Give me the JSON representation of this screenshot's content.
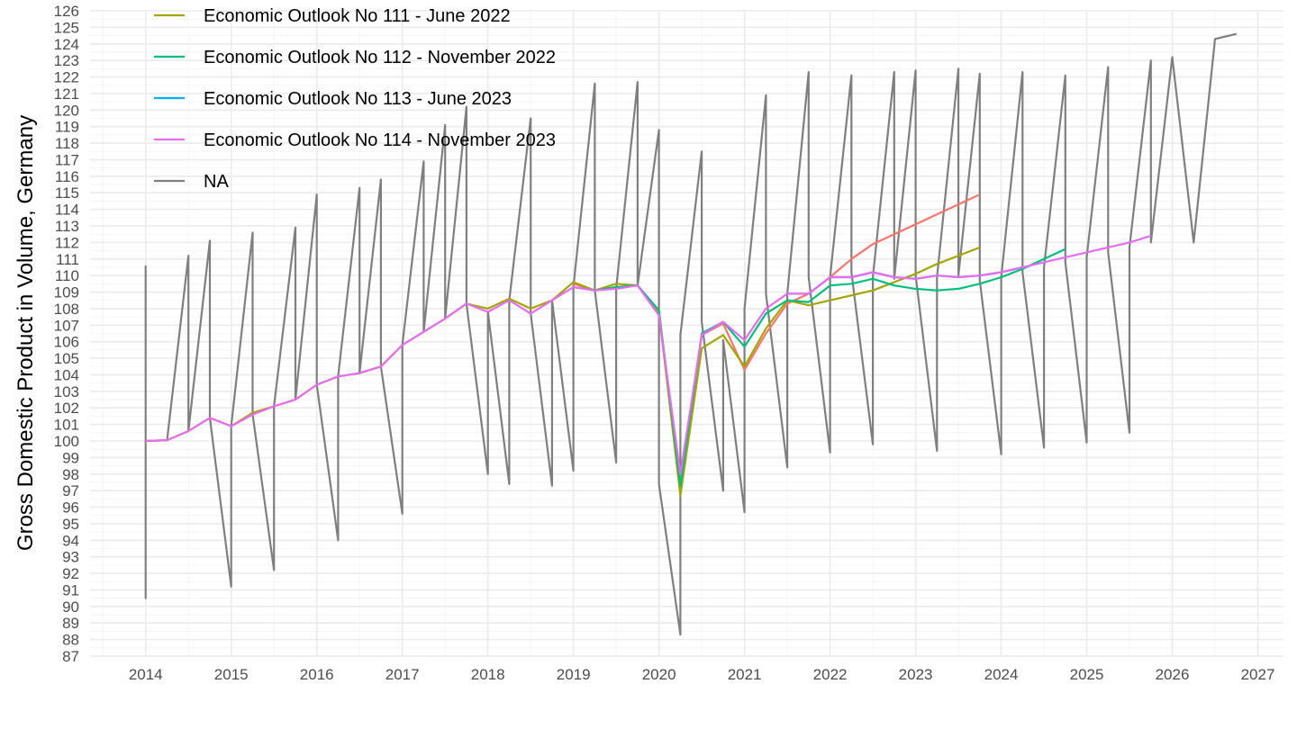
{
  "chart_data": {
    "type": "line",
    "title": "",
    "xlabel": "",
    "ylabel": "Gross Domestic Product in Volume, Germany",
    "xlim": [
      2013.35,
      2027.3
    ],
    "ylim": [
      87,
      126
    ],
    "x_ticks": [
      2014,
      2015,
      2016,
      2017,
      2018,
      2019,
      2020,
      2021,
      2022,
      2023,
      2024,
      2025,
      2026,
      2027
    ],
    "y_ticks": [
      87,
      88,
      89,
      90,
      91,
      92,
      93,
      94,
      95,
      96,
      97,
      98,
      99,
      100,
      101,
      102,
      103,
      104,
      105,
      106,
      107,
      108,
      109,
      110,
      111,
      112,
      113,
      114,
      115,
      116,
      117,
      118,
      119,
      120,
      121,
      122,
      123,
      124,
      125,
      126
    ],
    "y_tick_labels": [
      "87",
      "88",
      "89",
      "90",
      "91",
      "92",
      "93",
      "94",
      "95",
      "96",
      "97",
      "98",
      "99",
      "100",
      "101",
      "102",
      "103",
      "104",
      "105",
      "106",
      "107",
      "108",
      "109",
      "110",
      "111",
      "112",
      "113",
      "114",
      "115",
      "116",
      "117",
      "118",
      "119",
      "120",
      "121",
      "122",
      "123",
      "124",
      "125",
      "126"
    ],
    "grid": true,
    "legend_position": "top-left",
    "series": [
      {
        "color": "#F8766D",
        "in_legend": false,
        "x": [
          2019.0,
          2019.25,
          2019.5,
          2019.75,
          2020.0,
          2020.25,
          2020.5,
          2020.75,
          2021.0,
          2021.25,
          2021.5,
          2021.75,
          2022.0,
          2022.25,
          2022.5,
          2022.75,
          2023.0,
          2023.25,
          2023.5,
          2023.75
        ],
        "y": [
          109.5,
          109.1,
          109.3,
          109.4,
          107.6,
          97.5,
          106.4,
          107.1,
          104.3,
          106.5,
          108.3,
          108.9,
          109.9,
          111.0,
          111.9,
          112.5,
          113.1,
          113.7,
          114.3,
          114.9
        ]
      },
      {
        "name": "Economic Outlook No 111 - June 2022",
        "color": "#A3A500",
        "x": [
          2014.0,
          2014.25,
          2014.5,
          2014.75,
          2015.0,
          2015.25,
          2015.5,
          2015.75,
          2016.0,
          2016.25,
          2016.5,
          2016.75,
          2017.0,
          2017.25,
          2017.5,
          2017.75,
          2018.0,
          2018.25,
          2018.5,
          2018.75,
          2019.0,
          2019.25,
          2019.5,
          2019.75,
          2020.0,
          2020.25,
          2020.5,
          2020.75,
          2021.0,
          2021.25,
          2021.5,
          2021.75,
          2022.0,
          2022.25,
          2022.5,
          2022.75,
          2023.0,
          2023.25,
          2023.5,
          2023.75
        ],
        "y": [
          100.0,
          100.05,
          100.6,
          101.4,
          100.9,
          101.7,
          102.1,
          102.5,
          103.4,
          103.9,
          104.1,
          104.5,
          105.8,
          106.6,
          107.4,
          108.3,
          108.0,
          108.6,
          108.0,
          108.5,
          109.6,
          109.1,
          109.5,
          109.4,
          107.8,
          96.7,
          105.6,
          106.4,
          104.5,
          106.8,
          108.5,
          108.2,
          108.5,
          108.8,
          109.1,
          109.6,
          110.1,
          110.7,
          111.2,
          111.7
        ]
      },
      {
        "name": "Economic Outlook No 112 - November 2022",
        "color": "#00BF7D",
        "x": [
          2019.0,
          2019.25,
          2019.5,
          2019.75,
          2020.0,
          2020.25,
          2020.5,
          2020.75,
          2021.0,
          2021.25,
          2021.5,
          2021.75,
          2022.0,
          2022.25,
          2022.5,
          2022.75,
          2023.0,
          2023.25,
          2023.5,
          2023.75,
          2024.0,
          2024.25,
          2024.5,
          2024.75
        ],
        "y": [
          109.3,
          109.1,
          109.3,
          109.4,
          107.9,
          97.3,
          106.5,
          107.2,
          105.7,
          107.7,
          108.5,
          108.4,
          109.4,
          109.5,
          109.8,
          109.4,
          109.2,
          109.1,
          109.2,
          109.5,
          109.9,
          110.4,
          111.0,
          111.6
        ]
      },
      {
        "name": "Economic Outlook No 113 - June 2023",
        "color": "#00B0F6",
        "x": [
          2021.75,
          2022.0,
          2022.25,
          2022.5,
          2022.75,
          2023.0,
          2023.25,
          2023.5,
          2023.75,
          2024.0,
          2024.25
        ],
        "y": [
          108.9,
          109.9,
          109.9,
          110.2,
          109.9,
          109.8,
          110.0,
          109.9,
          110.0,
          110.2,
          110.5
        ]
      },
      {
        "name": "Economic Outlook No 114 - November 2023",
        "color": "#E76BF3",
        "x": [
          2014.0,
          2014.25,
          2014.5,
          2014.75,
          2015.0,
          2015.25,
          2015.5,
          2015.75,
          2016.0,
          2016.25,
          2016.5,
          2016.75,
          2017.0,
          2017.25,
          2017.5,
          2017.75,
          2018.0,
          2018.25,
          2018.5,
          2018.75,
          2019.0,
          2019.25,
          2019.5,
          2019.75,
          2020.0,
          2020.25,
          2020.5,
          2020.75,
          2021.0,
          2021.25,
          2021.5,
          2021.75,
          2022.0,
          2022.25,
          2022.5,
          2022.75,
          2023.0,
          2023.25,
          2023.5,
          2023.75,
          2024.0,
          2024.25,
          2024.5,
          2024.75,
          2025.0,
          2025.25,
          2025.5,
          2025.75
        ],
        "y": [
          100.0,
          100.05,
          100.6,
          101.4,
          100.9,
          101.6,
          102.1,
          102.5,
          103.4,
          103.9,
          104.1,
          104.5,
          105.8,
          106.6,
          107.4,
          108.3,
          107.8,
          108.5,
          107.7,
          108.5,
          109.3,
          109.1,
          109.2,
          109.4,
          107.6,
          98.0,
          106.4,
          107.2,
          106.1,
          108.0,
          108.9,
          108.9,
          109.9,
          109.9,
          110.2,
          109.9,
          109.8,
          110.0,
          109.9,
          110.0,
          110.2,
          110.5,
          110.8,
          111.1,
          111.4,
          111.7,
          112.0,
          112.4
        ]
      },
      {
        "name": "NA",
        "color": "#7F7F7F",
        "x": [
          2014.0,
          2014.0,
          2014.0,
          2014.25,
          2014.25,
          2014.5,
          2014.5,
          2014.75,
          2014.75,
          2015.0,
          2015.0,
          2015.25,
          2015.25,
          2015.5,
          2015.5,
          2015.75,
          2015.75,
          2016.0,
          2016.0,
          2016.25,
          2016.25,
          2016.5,
          2016.5,
          2016.75,
          2016.75,
          2017.0,
          2017.0,
          2017.25,
          2017.25,
          2017.5,
          2017.5,
          2017.75,
          2017.75,
          2018.0,
          2018.0,
          2018.25,
          2018.25,
          2018.5,
          2018.5,
          2018.75,
          2018.75,
          2019.0,
          2019.0,
          2019.25,
          2019.25,
          2019.5,
          2019.5,
          2019.75,
          2019.75,
          2020.0,
          2020.0,
          2020.25,
          2020.25,
          2020.5,
          2020.5,
          2020.75,
          2020.75,
          2021.0,
          2021.0,
          2021.25,
          2021.25,
          2021.5,
          2021.5,
          2021.75,
          2021.75,
          2022.0,
          2022.0,
          2022.25,
          2022.25,
          2022.5,
          2022.5,
          2022.75,
          2022.75,
          2023.0,
          2023.0,
          2023.25,
          2023.25,
          2023.5,
          2023.5,
          2023.75,
          2023.75,
          2024.0,
          2024.0,
          2024.25,
          2024.25,
          2024.5,
          2024.5,
          2024.75,
          2024.75,
          2025.0,
          2025.0,
          2025.25,
          2025.25,
          2025.5,
          2025.5,
          2025.75,
          2025.75,
          2026.0,
          2026.25,
          2026.5,
          2026.75
        ],
        "y": [
          110.6,
          90.5,
          100.0,
          100.05,
          100.05,
          111.2,
          100.6,
          112.1,
          101.4,
          91.2,
          100.9,
          112.6,
          101.6,
          92.2,
          102.1,
          112.9,
          102.5,
          114.9,
          103.4,
          94.0,
          103.9,
          115.3,
          104.1,
          115.8,
          104.5,
          95.6,
          105.8,
          116.9,
          106.6,
          119.1,
          107.4,
          120.2,
          108.3,
          98.0,
          107.8,
          97.4,
          108.5,
          119.5,
          107.7,
          97.3,
          108.5,
          98.2,
          109.3,
          121.6,
          109.1,
          98.7,
          109.2,
          121.7,
          109.4,
          118.8,
          97.4,
          88.3,
          106.4,
          117.5,
          107.2,
          97.0,
          106.1,
          95.7,
          108.0,
          120.9,
          108.9,
          98.4,
          108.9,
          122.3,
          109.9,
          99.3,
          109.9,
          122.1,
          110.2,
          99.8,
          109.9,
          122.3,
          109.8,
          122.4,
          110.0,
          99.4,
          109.9,
          122.5,
          110.0,
          122.2,
          109.7,
          99.2,
          109.9,
          122.3,
          110.2,
          99.6,
          110.5,
          122.1,
          110.8,
          99.9,
          111.1,
          122.6,
          111.4,
          100.5,
          111.7,
          123.0,
          112.0,
          123.2,
          112.0,
          124.3,
          124.6
        ]
      }
    ]
  }
}
